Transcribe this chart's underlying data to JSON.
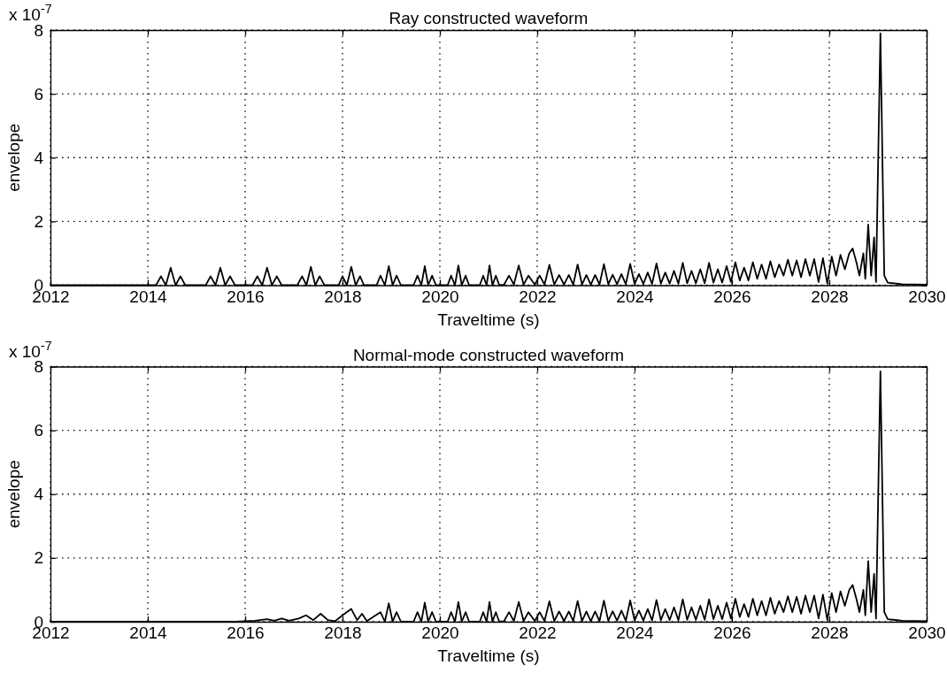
{
  "chart_data": [
    {
      "type": "line",
      "title": "Ray constructed waveform",
      "xlabel": "Traveltime (s)",
      "ylabel": "envelope",
      "annotations": [
        "x 10$^{-7}$"
      ],
      "xlim": [
        2012,
        2030
      ],
      "ylim": [
        0,
        8
      ],
      "xticks": [
        2012,
        2014,
        2016,
        2018,
        2020,
        2022,
        2024,
        2026,
        2028,
        2030
      ],
      "yticks": [
        0,
        2,
        4,
        6,
        8
      ],
      "grid": true,
      "series": [
        {
          "color": "#000000",
          "x": [
            2012,
            2014,
            2014.17,
            2014.27,
            2014.37,
            2014.47,
            2014.57,
            2014.67,
            2014.77,
            2015.19,
            2015.29,
            2015.39,
            2015.49,
            2015.59,
            2015.69,
            2015.79,
            2016.15,
            2016.25,
            2016.35,
            2016.45,
            2016.55,
            2016.65,
            2016.75,
            2017.07,
            2017.17,
            2017.26,
            2017.35,
            2017.44,
            2017.53,
            2017.63,
            2017.92,
            2018.0,
            2018.09,
            2018.18,
            2018.27,
            2018.36,
            2018.44,
            2018.7,
            2018.78,
            2018.87,
            2018.95,
            2019.03,
            2019.11,
            2019.2,
            2019.46,
            2019.54,
            2019.62,
            2019.69,
            2019.76,
            2019.84,
            2019.92,
            2020.16,
            2020.23,
            2020.31,
            2020.38,
            2020.45,
            2020.53,
            2020.6,
            2020.82,
            2020.89,
            2020.96,
            2021.02,
            2021.08,
            2021.15,
            2021.22,
            2021.32,
            2021.42,
            2021.52,
            2021.62,
            2021.72,
            2021.82,
            2021.95,
            2022.05,
            2022.15,
            2022.25,
            2022.35,
            2022.45,
            2022.55,
            2022.65,
            2022.74,
            2022.83,
            2022.92,
            2023.01,
            2023.1,
            2023.19,
            2023.28,
            2023.37,
            2023.46,
            2023.55,
            2023.64,
            2023.73,
            2023.82,
            2023.91,
            2024.0,
            2024.09,
            2024.18,
            2024.27,
            2024.36,
            2024.45,
            2024.54,
            2024.63,
            2024.72,
            2024.81,
            2024.9,
            2024.99,
            2025.08,
            2025.17,
            2025.26,
            2025.35,
            2025.44,
            2025.53,
            2025.62,
            2025.71,
            2025.8,
            2025.89,
            2025.98,
            2026.07,
            2026.16,
            2026.25,
            2026.34,
            2026.43,
            2026.52,
            2026.61,
            2026.7,
            2026.79,
            2026.88,
            2026.97,
            2027.06,
            2027.15,
            2027.24,
            2027.33,
            2027.42,
            2027.51,
            2027.6,
            2027.69,
            2027.78,
            2027.87,
            2027.96,
            2028.05,
            2028.14,
            2028.23,
            2028.32,
            2028.41,
            2028.48,
            2028.56,
            2028.62,
            2028.7,
            2028.74,
            2028.8,
            2028.86,
            2028.92,
            2028.96,
            2029.05,
            2029.13,
            2029.2,
            2029.5,
            2030
          ],
          "values": [
            0,
            0,
            0,
            0.28,
            0,
            0.55,
            0,
            0.28,
            0,
            0,
            0.28,
            0,
            0.55,
            0,
            0.28,
            0,
            0,
            0.28,
            0,
            0.55,
            0,
            0.28,
            0,
            0,
            0.28,
            0,
            0.58,
            0,
            0.28,
            0,
            0,
            0.28,
            0,
            0.58,
            0,
            0.28,
            0,
            0,
            0.3,
            0,
            0.6,
            0,
            0.3,
            0,
            0,
            0.3,
            0,
            0.6,
            0,
            0.3,
            0,
            0,
            0.3,
            0,
            0.62,
            0,
            0.3,
            0,
            0,
            0.3,
            0,
            0.62,
            0,
            0.3,
            0,
            0.02,
            0.3,
            0.02,
            0.62,
            0.02,
            0.3,
            0.02,
            0.3,
            0.02,
            0.64,
            0.02,
            0.32,
            0.02,
            0.32,
            0.02,
            0.65,
            0.02,
            0.32,
            0.02,
            0.32,
            0.02,
            0.66,
            0.03,
            0.33,
            0.03,
            0.35,
            0.03,
            0.67,
            0.04,
            0.35,
            0.04,
            0.4,
            0.04,
            0.68,
            0.05,
            0.4,
            0.05,
            0.45,
            0.05,
            0.7,
            0.06,
            0.45,
            0.06,
            0.5,
            0.06,
            0.7,
            0.08,
            0.5,
            0.08,
            0.6,
            0.1,
            0.72,
            0.15,
            0.55,
            0.15,
            0.72,
            0.2,
            0.65,
            0.2,
            0.75,
            0.25,
            0.65,
            0.3,
            0.8,
            0.3,
            0.78,
            0.25,
            0.82,
            0.3,
            0.82,
            0.1,
            0.85,
            0.05,
            0.9,
            0.3,
            0.95,
            0.5,
            1.0,
            1.15,
            0.7,
            0.3,
            1.0,
            0.2,
            1.9,
            0.3,
            1.5,
            0.1,
            7.9,
            0.3,
            0.08,
            0.03,
            0.02
          ]
        }
      ]
    },
    {
      "type": "line",
      "title": "Normal-mode constructed waveform",
      "xlabel": "Traveltime (s)",
      "ylabel": "envelope",
      "annotations": [
        "x 10$^{-7}$"
      ],
      "xlim": [
        2012,
        2030
      ],
      "ylim": [
        0,
        8
      ],
      "xticks": [
        2012,
        2014,
        2016,
        2018,
        2020,
        2022,
        2024,
        2026,
        2028,
        2030
      ],
      "yticks": [
        0,
        2,
        4,
        6,
        8
      ],
      "grid": true,
      "series": [
        {
          "color": "#000000",
          "x": [
            2012,
            2015.8,
            2016.2,
            2016.45,
            2016.6,
            2016.75,
            2016.9,
            2017.1,
            2017.25,
            2017.4,
            2017.55,
            2017.7,
            2017.85,
            2018.0,
            2018.18,
            2018.3,
            2018.4,
            2018.5,
            2018.78,
            2018.87,
            2018.95,
            2019.03,
            2019.11,
            2019.2,
            2019.46,
            2019.54,
            2019.62,
            2019.69,
            2019.76,
            2019.84,
            2019.92,
            2020.16,
            2020.23,
            2020.31,
            2020.38,
            2020.45,
            2020.53,
            2020.6,
            2020.82,
            2020.89,
            2020.96,
            2021.02,
            2021.08,
            2021.15,
            2021.22,
            2021.32,
            2021.42,
            2021.52,
            2021.62,
            2021.72,
            2021.82,
            2021.95,
            2022.05,
            2022.15,
            2022.25,
            2022.35,
            2022.45,
            2022.55,
            2022.65,
            2022.74,
            2022.83,
            2022.92,
            2023.01,
            2023.1,
            2023.19,
            2023.28,
            2023.37,
            2023.46,
            2023.55,
            2023.64,
            2023.73,
            2023.82,
            2023.91,
            2024.0,
            2024.09,
            2024.18,
            2024.27,
            2024.36,
            2024.45,
            2024.54,
            2024.63,
            2024.72,
            2024.81,
            2024.9,
            2024.99,
            2025.08,
            2025.17,
            2025.26,
            2025.35,
            2025.44,
            2025.53,
            2025.62,
            2025.71,
            2025.8,
            2025.89,
            2025.98,
            2026.07,
            2026.16,
            2026.25,
            2026.34,
            2026.43,
            2026.52,
            2026.61,
            2026.7,
            2026.79,
            2026.88,
            2026.97,
            2027.06,
            2027.15,
            2027.24,
            2027.33,
            2027.42,
            2027.51,
            2027.6,
            2027.69,
            2027.78,
            2027.87,
            2027.96,
            2028.05,
            2028.14,
            2028.23,
            2028.32,
            2028.41,
            2028.48,
            2028.56,
            2028.62,
            2028.7,
            2028.74,
            2028.8,
            2028.86,
            2028.92,
            2028.96,
            2029.05,
            2029.13,
            2029.2,
            2029.5,
            2030
          ],
          "values": [
            0,
            0,
            0.03,
            0.08,
            0.03,
            0.1,
            0.03,
            0.1,
            0.2,
            0.05,
            0.25,
            0.05,
            0.02,
            0.2,
            0.4,
            0.05,
            0.25,
            0.02,
            0.3,
            0,
            0.58,
            0,
            0.3,
            0,
            0,
            0.3,
            0,
            0.6,
            0,
            0.3,
            0,
            0,
            0.3,
            0,
            0.62,
            0,
            0.3,
            0,
            0,
            0.3,
            0,
            0.62,
            0,
            0.3,
            0,
            0.02,
            0.3,
            0.02,
            0.62,
            0.02,
            0.3,
            0.02,
            0.3,
            0.02,
            0.64,
            0.02,
            0.32,
            0.02,
            0.32,
            0.02,
            0.65,
            0.02,
            0.32,
            0.02,
            0.32,
            0.02,
            0.66,
            0.03,
            0.33,
            0.03,
            0.35,
            0.03,
            0.67,
            0.04,
            0.35,
            0.04,
            0.4,
            0.04,
            0.68,
            0.05,
            0.4,
            0.05,
            0.45,
            0.05,
            0.7,
            0.06,
            0.45,
            0.06,
            0.5,
            0.06,
            0.7,
            0.08,
            0.5,
            0.08,
            0.6,
            0.1,
            0.72,
            0.15,
            0.55,
            0.15,
            0.72,
            0.2,
            0.65,
            0.2,
            0.75,
            0.25,
            0.65,
            0.3,
            0.8,
            0.3,
            0.78,
            0.25,
            0.82,
            0.3,
            0.82,
            0.1,
            0.85,
            0.05,
            0.9,
            0.3,
            0.95,
            0.5,
            1.0,
            1.15,
            0.7,
            0.3,
            1.0,
            0.2,
            1.9,
            0.3,
            1.5,
            0.1,
            7.85,
            0.3,
            0.08,
            0.03,
            0.02
          ]
        }
      ]
    }
  ]
}
